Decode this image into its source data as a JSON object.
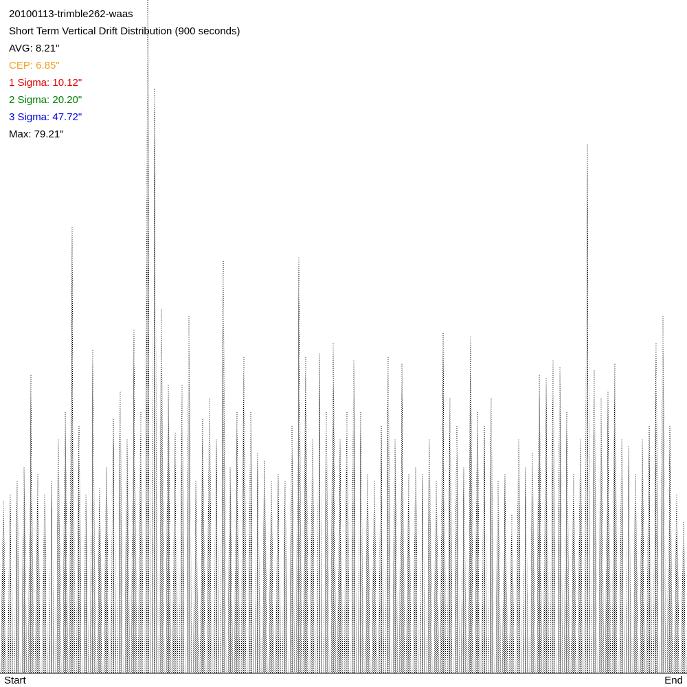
{
  "chart_data": {
    "type": "spike",
    "title": "20100113-trimble262-waas",
    "subtitle": "Short Term Vertical Drift Distribution (900 seconds)",
    "stats": [
      {
        "text": "AVG: 8.21\"",
        "color": "#000000"
      },
      {
        "text": "CEP: 6.85\"",
        "color": "#f0a020"
      },
      {
        "text": "1 Sigma: 10.12\"",
        "color": "#e00000"
      },
      {
        "text": "2 Sigma: 20.20\"",
        "color": "#008000"
      },
      {
        "text": "3 Sigma: 47.72\"",
        "color": "#0000e0"
      },
      {
        "text": "Max: 79.21\"",
        "color": "#000000"
      }
    ],
    "xlabels": [
      "Start",
      "End"
    ],
    "color": "#000000",
    "ylim": [
      0,
      79.21
    ],
    "values": [
      20.2,
      21.0,
      22.6,
      24.2,
      35.1,
      23.4,
      21.0,
      22.6,
      27.5,
      30.7,
      52.5,
      29.1,
      21.0,
      38.0,
      21.8,
      24.2,
      29.9,
      33.1,
      27.5,
      40.4,
      30.7,
      79.2,
      68.7,
      42.8,
      33.9,
      28.3,
      33.9,
      42.0,
      22.6,
      29.9,
      32.3,
      27.5,
      48.5,
      24.2,
      30.7,
      37.2,
      30.7,
      25.9,
      25.0,
      22.6,
      23.4,
      22.6,
      29.1,
      48.9,
      37.2,
      27.5,
      37.6,
      30.7,
      38.8,
      27.5,
      30.7,
      36.8,
      30.7,
      23.4,
      22.6,
      29.1,
      37.2,
      27.5,
      36.4,
      23.4,
      24.2,
      23.4,
      27.5,
      22.6,
      40.0,
      32.3,
      29.1,
      24.2,
      39.6,
      30.7,
      29.1,
      32.3,
      22.6,
      23.4,
      18.6,
      27.5,
      24.2,
      25.9,
      35.1,
      34.7,
      36.8,
      36.0,
      30.7,
      23.4,
      27.5,
      62.2,
      35.6,
      32.3,
      33.1,
      36.4,
      27.5,
      26.7,
      23.4,
      27.5,
      29.1,
      38.8,
      42.0,
      29.1,
      21.0,
      17.8
    ]
  }
}
